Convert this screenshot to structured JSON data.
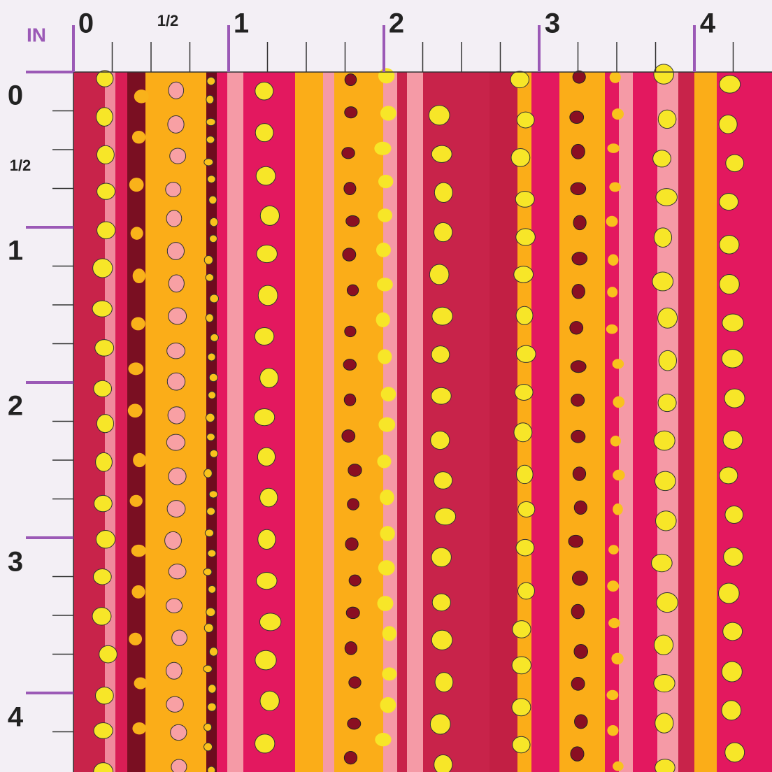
{
  "ruler": {
    "unit": "IN",
    "top": [
      "0",
      "1/2",
      "1",
      "2",
      "3",
      "4"
    ],
    "left": [
      "0",
      "1/2",
      "1",
      "2",
      "3",
      "4"
    ]
  }
}
